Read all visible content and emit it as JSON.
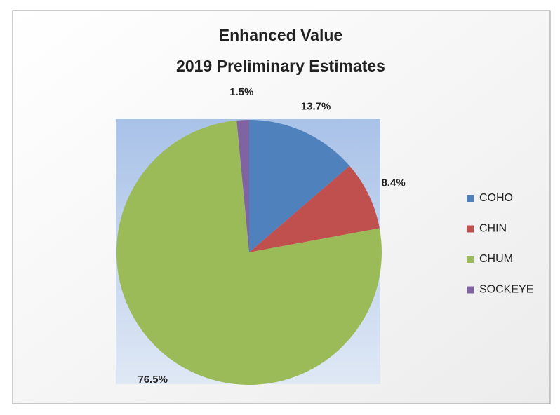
{
  "chart_data": {
    "type": "pie",
    "title": "Enhanced Value",
    "subtitle": "2019 Preliminary Estimates",
    "categories": [
      "COHO",
      "CHIN",
      "CHUM",
      "SOCKEYE"
    ],
    "values": [
      13.7,
      8.4,
      76.5,
      1.5
    ],
    "value_labels": [
      "13.7%",
      "8.4%",
      "76.5%",
      "1.5%"
    ],
    "colors": [
      "#4f81bd",
      "#c0504d",
      "#9bbb59",
      "#8064a2"
    ],
    "legend": "right"
  }
}
